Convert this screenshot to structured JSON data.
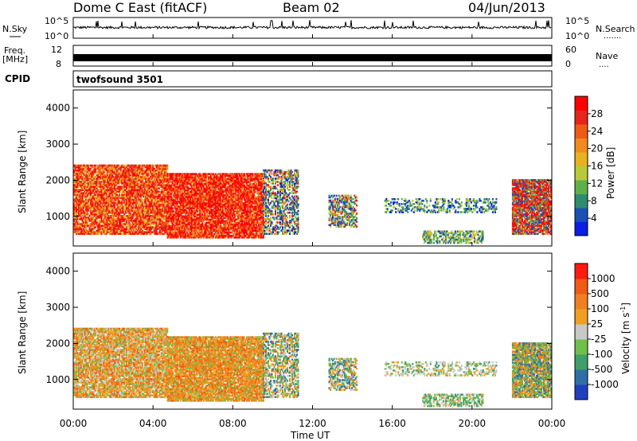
{
  "header": {
    "station": "Dome C East (fitACF)",
    "beam": "Beam 02",
    "date": "04/Jun/2013"
  },
  "panels": {
    "nsky": {
      "label": "N.Sky",
      "left_ticks": [
        "10^5",
        "10^0"
      ],
      "right_ticks": [
        "10^5",
        "10^0"
      ],
      "right_label": "N.Search",
      "right_dots": "......."
    },
    "freq": {
      "label_top": "Freq.",
      "label_unit": "[MHz]",
      "left_ticks": [
        "12",
        "8"
      ],
      "right_ticks": [
        "60",
        "0"
      ],
      "right_label": "Nave",
      "right_dots": "...."
    },
    "cpid": {
      "label": "CPID",
      "value": "twofsound 3501"
    }
  },
  "x_axis": {
    "label": "Time UT",
    "ticks": [
      "00:00",
      "04:00",
      "08:00",
      "12:00",
      "16:00",
      "20:00",
      "00:00"
    ]
  },
  "power_panel": {
    "ylabel": "Slant Range [km]",
    "yticks": [
      "1000",
      "2000",
      "3000",
      "4000"
    ],
    "colorbar_label": "Power [dB]",
    "colorbar_ticks": [
      "4",
      "8",
      "12",
      "16",
      "20",
      "24",
      "28"
    ],
    "colorbar_colors": [
      "#0a1ee6",
      "#1a4fb5",
      "#2e8c6e",
      "#5fb04a",
      "#b8c93a",
      "#e6b220",
      "#f28a1e",
      "#f05a14",
      "#e8231a",
      "#ff0000"
    ]
  },
  "velocity_panel": {
    "ylabel": "Slant Range [km]",
    "yticks": [
      "1000",
      "2000",
      "3000",
      "4000"
    ],
    "colorbar_label": "Velocity [m s",
    "colorbar_label_sup": "-1",
    "colorbar_label_end": "]",
    "colorbar_ticks": [
      "1000",
      "500",
      "100",
      "25",
      "-25",
      "-100",
      "-500",
      "-1000"
    ],
    "colorbar_colors": [
      "#1f3fbf",
      "#2f6fa8",
      "#3f9e6a",
      "#6fc04a",
      "#c8c8c8",
      "#f0a020",
      "#f08020",
      "#f05a14",
      "#ff1a10"
    ]
  },
  "chart_data": {
    "type": "heatmap",
    "x_range_hours": [
      0,
      24
    ],
    "y_range_km": [
      180,
      4500
    ],
    "power_regions": [
      {
        "t": [
          0.0,
          4.7
        ],
        "r": [
          500,
          2400
        ],
        "color": "red-orange",
        "description_level": "high"
      },
      {
        "t": [
          4.7,
          9.5
        ],
        "r": [
          400,
          2200
        ],
        "color": "red",
        "description_level": "high"
      },
      {
        "t": [
          9.5,
          11.3
        ],
        "r": [
          500,
          2300
        ],
        "color": "mixed",
        "description_level": "medium"
      },
      {
        "t": [
          12.8,
          14.2
        ],
        "r": [
          700,
          1600
        ],
        "color": "mixed",
        "description_level": "medium"
      },
      {
        "t": [
          15.6,
          21.2
        ],
        "r": [
          1100,
          1500
        ],
        "color": "blue-green",
        "description_level": "low"
      },
      {
        "t": [
          17.5,
          20.5
        ],
        "r": [
          250,
          600
        ],
        "color": "green-orange",
        "description_level": "medium"
      },
      {
        "t": [
          22.0,
          24.0
        ],
        "r": [
          500,
          2000
        ],
        "color": "red-mixed",
        "description_level": "high"
      }
    ]
  }
}
